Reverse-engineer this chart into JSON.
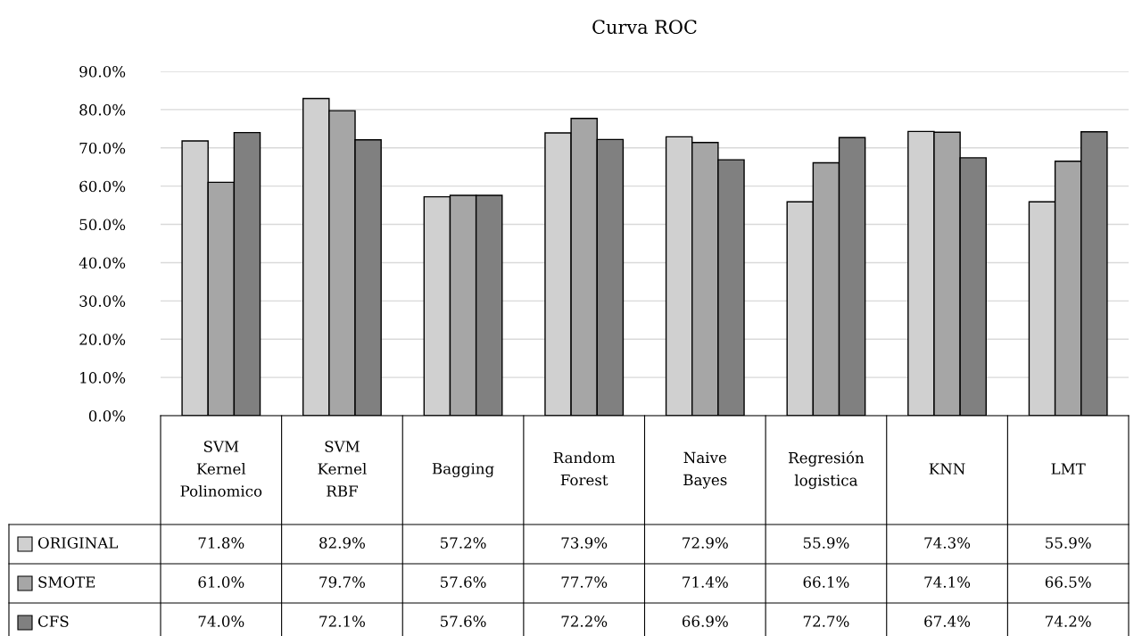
{
  "chart_data": {
    "type": "bar",
    "title": "Curva ROC",
    "categories": [
      "SVM\nKernel\nPolinomico",
      "SVM\nKernel\nRBF",
      "Bagging",
      "Random\nForest",
      "Naive\nBayes",
      "Regresión\nlogistica",
      "KNN",
      "LMT"
    ],
    "series": [
      {
        "name": "ORIGINAL",
        "color": "#d0d0d0",
        "values": [
          71.8,
          82.9,
          57.2,
          73.9,
          72.9,
          55.9,
          74.3,
          55.9
        ],
        "value_labels": [
          "71.8%",
          "82.9%",
          "57.2%",
          "73.9%",
          "72.9%",
          "55.9%",
          "74.3%",
          "55.9%"
        ]
      },
      {
        "name": "SMOTE",
        "color": "#a6a6a6",
        "values": [
          61.0,
          79.7,
          57.6,
          77.7,
          71.4,
          66.1,
          74.1,
          66.5
        ],
        "value_labels": [
          "61.0%",
          "79.7%",
          "57.6%",
          "77.7%",
          "71.4%",
          "66.1%",
          "74.1%",
          "66.5%"
        ]
      },
      {
        "name": "CFS",
        "color": "#808080",
        "values": [
          74.0,
          72.1,
          57.6,
          72.2,
          66.9,
          72.7,
          67.4,
          74.2
        ],
        "value_labels": [
          "74.0%",
          "72.1%",
          "57.6%",
          "72.2%",
          "66.9%",
          "72.7%",
          "67.4%",
          "74.2%"
        ]
      }
    ],
    "ylim": [
      0,
      90
    ],
    "yticks": [
      {
        "value": 0,
        "label": "0.0%"
      },
      {
        "value": 10,
        "label": "10.0%"
      },
      {
        "value": 20,
        "label": "20.0%"
      },
      {
        "value": 30,
        "label": "30.0%"
      },
      {
        "value": 40,
        "label": "40.0%"
      },
      {
        "value": 50,
        "label": "50.0%"
      },
      {
        "value": 60,
        "label": "60.0%"
      },
      {
        "value": 70,
        "label": "70.0%"
      },
      {
        "value": 80,
        "label": "80.0%"
      },
      {
        "value": 90,
        "label": "90.0%"
      }
    ],
    "grid": "y",
    "legend": "bottom left"
  }
}
